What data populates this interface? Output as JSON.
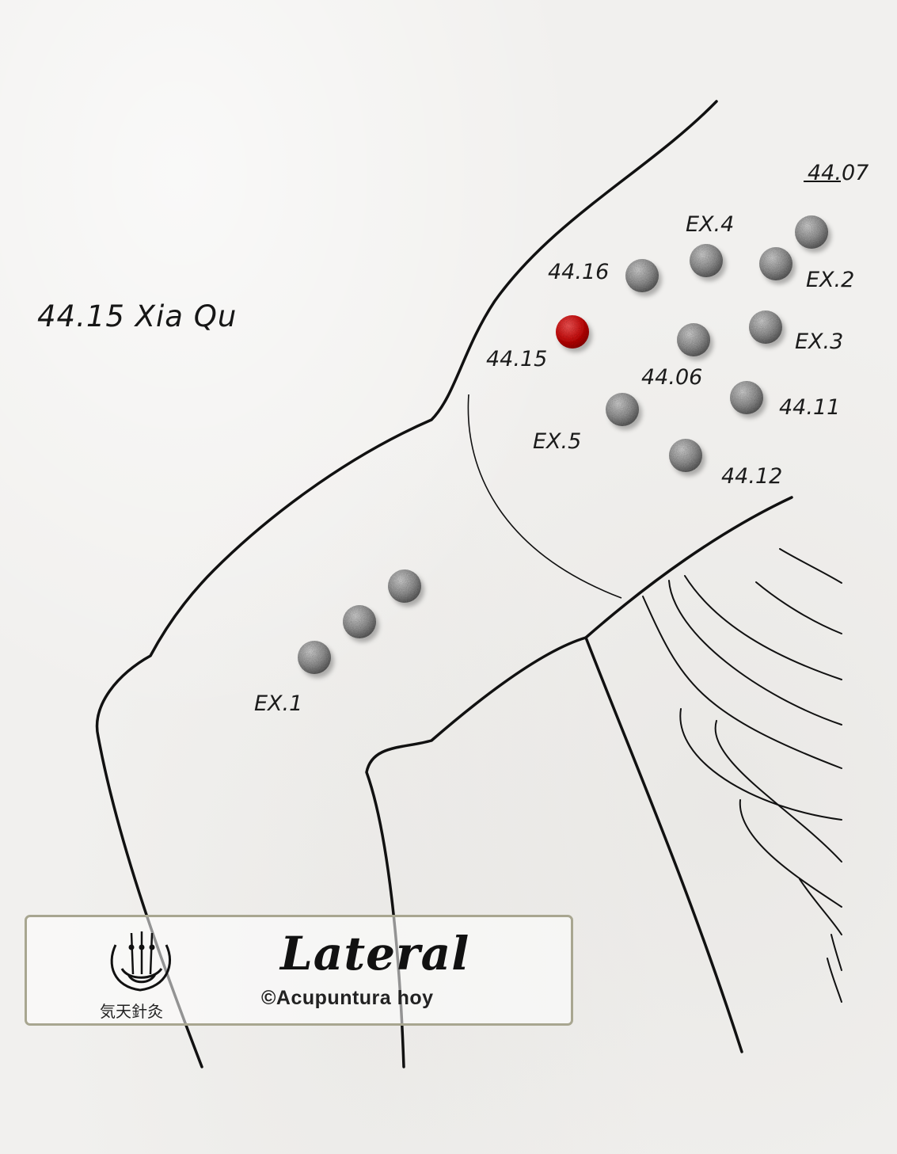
{
  "title": "44.15 Xia Qu",
  "points": [
    {
      "id": "44.07",
      "label": "44.07",
      "highlight": false
    },
    {
      "id": "EX.4",
      "label": "EX.4",
      "highlight": false
    },
    {
      "id": "44.16",
      "label": "44.16",
      "highlight": false
    },
    {
      "id": "EX.2",
      "label": "EX.2",
      "highlight": false
    },
    {
      "id": "44.15",
      "label": "44.15",
      "highlight": true
    },
    {
      "id": "44.06",
      "label": "44.06",
      "highlight": false
    },
    {
      "id": "EX.3",
      "label": "EX.3",
      "highlight": false
    },
    {
      "id": "44.11",
      "label": "44.11",
      "highlight": false
    },
    {
      "id": "EX.5",
      "label": "EX.5",
      "highlight": false
    },
    {
      "id": "44.12",
      "label": "44.12",
      "highlight": false
    },
    {
      "id": "EX.1",
      "label": "EX.1",
      "highlight": false
    }
  ],
  "legend": {
    "view": "Lateral",
    "copyright": "©Acupuntura hoy",
    "logo_text": "気天針灸"
  },
  "colors": {
    "highlight_point": "#d01010",
    "point": "#8c8c8c",
    "outline": "#111111",
    "legend_border": "#a8a690"
  }
}
